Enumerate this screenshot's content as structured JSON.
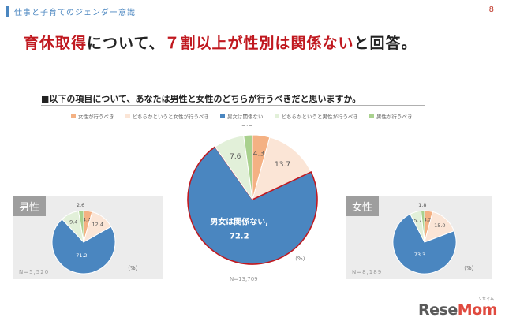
{
  "header": {
    "section_title": "仕事と子育てのジェンダー意識",
    "page_number": "8"
  },
  "headline": {
    "part1": "育休取得",
    "part2": "について、",
    "part3": "７割以上が性別は関係ない",
    "part4": "と回答。"
  },
  "question": "■以下の項目について、あなたは男性と女性のどちらが行うべきだと思いますか。",
  "colors": {
    "female": "#f4b183",
    "rather_female": "#fbe5d6",
    "none": "#4a86c0",
    "rather_male": "#e2f0d9",
    "male": "#a9d18e"
  },
  "chart_data": [
    {
      "type": "pie",
      "id": "total",
      "label": "",
      "categories": [
        "女性が行うべき",
        "どちらかというと女性が行うべき",
        "男女は関係ない",
        "どちらかというと男性が行うべき",
        "男性が行うべき"
      ],
      "values": [
        4.3,
        13.7,
        72.2,
        7.6,
        2.2
      ],
      "value_labels": [
        "4.3",
        "13.7",
        "72.2",
        "7.6",
        "2.2"
      ],
      "highlight_label": "男女は関係ない,",
      "n": "N=13,709",
      "unit": "（%）"
    },
    {
      "type": "pie",
      "id": "male",
      "label": "男性",
      "values": [
        4.4,
        12.4,
        71.2,
        9.4,
        2.6
      ],
      "value_labels": [
        "4.4",
        "12.4",
        "71.2",
        "9.4",
        "2.6"
      ],
      "n": "N=5,520",
      "unit": "（%）"
    },
    {
      "type": "pie",
      "id": "female",
      "label": "女性",
      "values": [
        4.2,
        15.0,
        73.3,
        5.7,
        1.8
      ],
      "value_labels": [
        "4.2",
        "15.0",
        "73.3",
        "5.7",
        "1.8"
      ],
      "n": "N=8,189",
      "unit": "（%）"
    }
  ],
  "logo": {
    "text_a": "Rese",
    "text_b": "Mom",
    "kana": "リセマム"
  }
}
